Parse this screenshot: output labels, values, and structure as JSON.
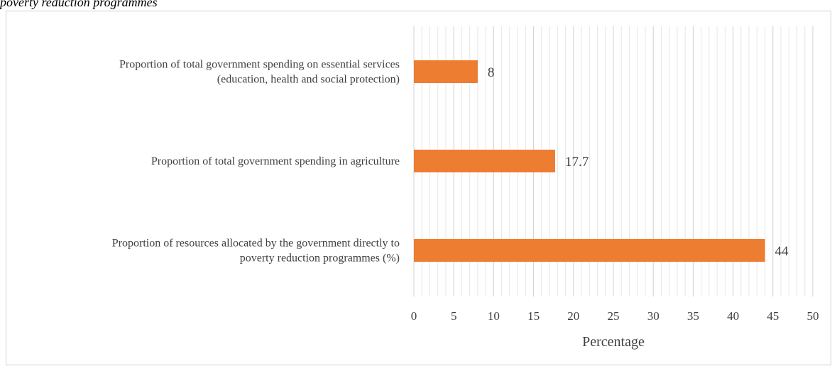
{
  "caption": "poverty reduction programmes",
  "chart_data": {
    "type": "bar",
    "orientation": "horizontal",
    "categories": [
      [
        "Proportion of total government spending on essential services",
        "(education, health and social protection)"
      ],
      [
        "Proportion of total government spending in agriculture"
      ],
      [
        "Proportion of resources allocated by the government directly to",
        "poverty reduction programmes (%)"
      ]
    ],
    "values": [
      8,
      17.7,
      44
    ],
    "value_labels": [
      "8",
      "17.7",
      "44"
    ],
    "xlabel": "Percentage",
    "xlim": [
      0,
      50
    ],
    "xticks": [
      0,
      5,
      10,
      15,
      20,
      25,
      30,
      35,
      40,
      45,
      50
    ],
    "minor_step": 1,
    "grid": true,
    "colors": {
      "bar": "#ED7D31",
      "major_grid": "#d0d0d0",
      "minor_grid": "#e6e6e6",
      "text": "#404040"
    }
  }
}
